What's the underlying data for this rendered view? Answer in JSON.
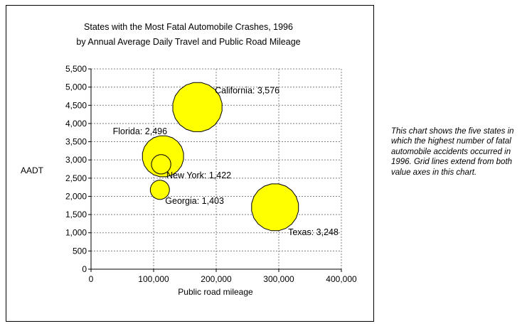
{
  "chart_data": {
    "type": "bubble",
    "title": [
      "States with the Most Fatal Automobile Crashes, 1996",
      "by Annual Average Daily Travel and Public Road Mileage"
    ],
    "xlabel": "Public road mileage",
    "ylabel": "AADT",
    "xlim": [
      0,
      400000
    ],
    "ylim": [
      0,
      5500
    ],
    "x_ticks": [
      0,
      100000,
      200000,
      300000,
      400000
    ],
    "x_tick_labels": [
      "0",
      "100,000",
      "200,000",
      "300,000",
      "400,000"
    ],
    "y_ticks": [
      0,
      500,
      1000,
      1500,
      2000,
      2500,
      3000,
      3500,
      4000,
      4500,
      5000,
      5500
    ],
    "y_tick_labels": [
      "0",
      "500",
      "1,000",
      "1,500",
      "2,000",
      "2,500",
      "3,000",
      "3,500",
      "4,000",
      "4,500",
      "5,000",
      "5,500"
    ],
    "grid": true,
    "bubble_color": "#ffff00",
    "points": [
      {
        "label": "California: 3,576",
        "name": "California",
        "x": 170000,
        "y": 4450,
        "size": 3576,
        "label_pos": "upper-right"
      },
      {
        "label": "Florida: 2,496",
        "name": "Florida",
        "x": 115000,
        "y": 3100,
        "size": 2496,
        "label_pos": "upper-left"
      },
      {
        "label": "New York: 1,422",
        "name": "New York",
        "x": 112000,
        "y": 2880,
        "size": 1422,
        "label_pos": "lower-right"
      },
      {
        "label": "Georgia: 1,403",
        "name": "Georgia",
        "x": 110000,
        "y": 2180,
        "size": 1403,
        "label_pos": "lower-right"
      },
      {
        "label": "Texas: 3,248",
        "name": "Texas",
        "x": 294000,
        "y": 1700,
        "size": 3248,
        "label_pos": "lower-right"
      }
    ]
  },
  "caption": "This chart shows the five states in which the highest number of fatal automobile accidents occurred in 1996. Grid lines extend from both value axes in this chart."
}
